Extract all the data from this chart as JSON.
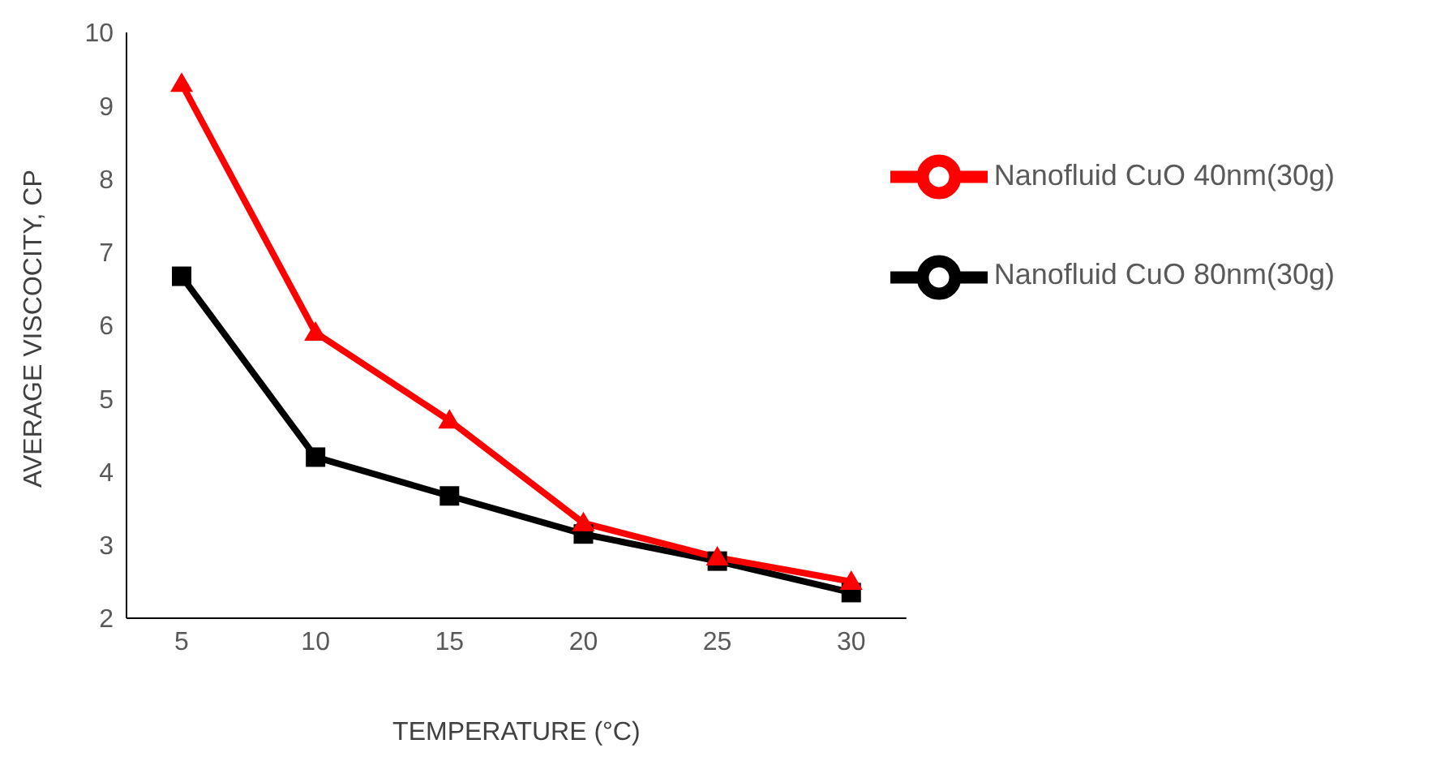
{
  "chart_data": {
    "type": "line",
    "xlabel": "TEMPERATURE (°C)",
    "ylabel": "AVERAGE VISCOCITY, CP",
    "categories": [
      "5",
      "10",
      "15",
      "20",
      "25",
      "30"
    ],
    "series": [
      {
        "name": "Nanofluid CuO 40nm(30g)",
        "color": "#ff0000",
        "marker": "triangle",
        "values": [
          9.3,
          5.9,
          4.7,
          3.3,
          2.83,
          2.5
        ]
      },
      {
        "name": "Nanofluid CuO 80nm(30g)",
        "color": "#000000",
        "marker": "square",
        "values": [
          6.67,
          4.2,
          3.67,
          3.15,
          2.78,
          2.35
        ]
      }
    ],
    "ylim": [
      2,
      10
    ],
    "yticks": [
      2,
      3,
      4,
      5,
      6,
      7,
      8,
      9,
      10
    ],
    "grid": false,
    "legend": "top right"
  }
}
